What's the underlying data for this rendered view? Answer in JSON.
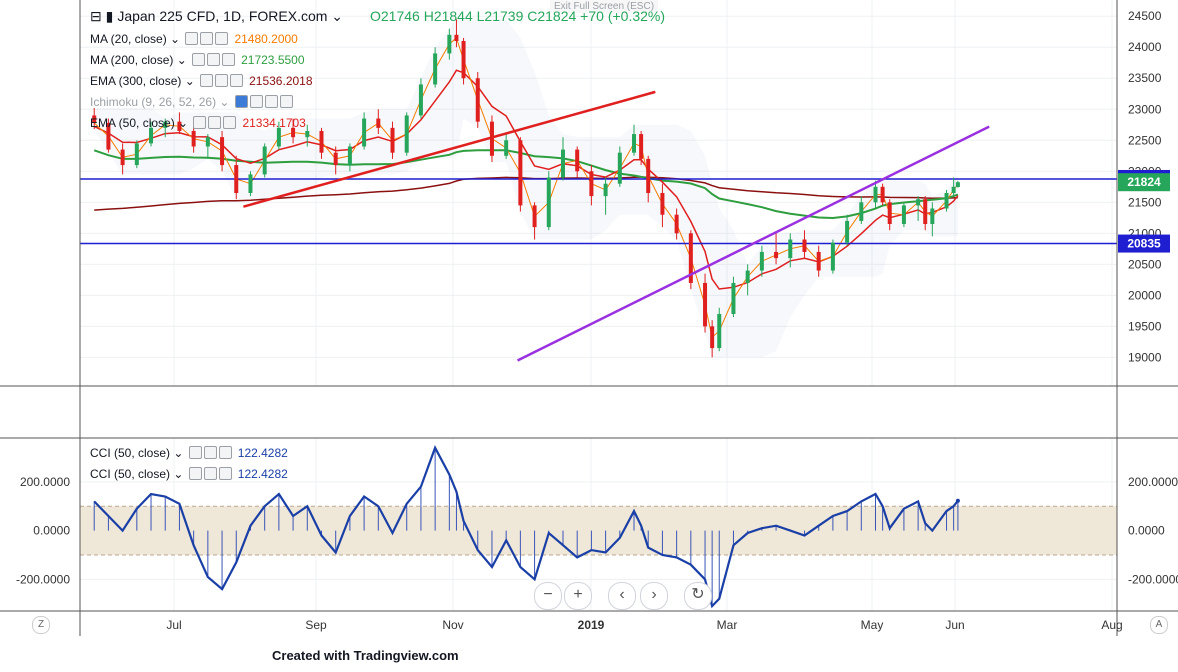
{
  "header": {
    "symbol": "Japan 225 CFD, 1D, FOREX.com",
    "ohlc": "O21746  H21844  L21739  C21824  +70 (+0.32%)",
    "exit_fullscreen": "Exit Full Screen (ESC)"
  },
  "indicators": [
    {
      "label": "MA (20, close)",
      "value": "21480.2000",
      "color": "#f57c00"
    },
    {
      "label": "MA (200, close)",
      "value": "21723.5500",
      "color": "#2e9e3f"
    },
    {
      "label": "EMA (300, close)",
      "value": "21536.2018",
      "color": "#8b1010"
    },
    {
      "label": "Ichimoku (9, 26, 52, 26)",
      "value": "",
      "color": "#9aa0a6"
    },
    {
      "label": "EMA (50, close)",
      "value": "21334.1703",
      "color": "#e01f1f"
    }
  ],
  "cci_indicators": [
    {
      "label": "CCI (50, close)",
      "value": "122.4282",
      "color": "#1a3fa6"
    },
    {
      "label": "CCI (50, close)",
      "value": "122.4282",
      "color": "#1a3fa6"
    }
  ],
  "credit": "Created with Tradingview.com",
  "nav": {
    "zoom_out": "−",
    "zoom_in": "+",
    "prev": "‹",
    "next": "›",
    "reset": "↻"
  },
  "corners": {
    "left": "Z",
    "right": "A"
  },
  "chart_data": [
    {
      "type": "candlestick",
      "title": "Japan 225 CFD, 1D, FOREX.com",
      "x_tick_labels": [
        "Jul",
        "Sep",
        "Nov",
        "2019",
        "Mar",
        "May",
        "Jun",
        "Aug"
      ],
      "y_tick_labels": [
        "19000",
        "19500",
        "20000",
        "20500",
        "21000",
        "21500",
        "22000",
        "22500",
        "23000",
        "23500",
        "24000",
        "24500"
      ],
      "ylim": [
        18700,
        24600
      ],
      "xlim_months": [
        4.9,
        12.2
      ],
      "grid": true,
      "price_labels": [
        {
          "label": "21876",
          "value": 21876,
          "color": "#1f1fd1"
        },
        {
          "label": "21824",
          "value": 21824,
          "color": "#26a65b"
        },
        {
          "label": "20835",
          "value": 20835,
          "color": "#1f1fd1"
        }
      ],
      "horizontal_lines": [
        21876,
        20835
      ],
      "trendlines": [
        {
          "from": [
            6.05,
            21430
          ],
          "to": [
            8.95,
            23280
          ],
          "color": "#e01f1f"
        },
        {
          "from": [
            7.98,
            18950
          ],
          "to": [
            11.3,
            22720
          ],
          "color": "#9b30e0"
        }
      ],
      "ohlc_series": [
        {
          "x": 5.0,
          "o": 22900,
          "h": 23020,
          "l": 22680,
          "c": 22780
        },
        {
          "x": 5.1,
          "o": 22780,
          "h": 22850,
          "l": 22300,
          "c": 22350
        },
        {
          "x": 5.2,
          "o": 22350,
          "h": 22450,
          "l": 21950,
          "c": 22100
        },
        {
          "x": 5.3,
          "o": 22100,
          "h": 22500,
          "l": 22050,
          "c": 22450
        },
        {
          "x": 5.4,
          "o": 22450,
          "h": 22800,
          "l": 22400,
          "c": 22700
        },
        {
          "x": 5.5,
          "o": 22700,
          "h": 22850,
          "l": 22550,
          "c": 22800
        },
        {
          "x": 5.6,
          "o": 22800,
          "h": 22950,
          "l": 22600,
          "c": 22650
        },
        {
          "x": 5.7,
          "o": 22650,
          "h": 22750,
          "l": 22300,
          "c": 22400
        },
        {
          "x": 5.8,
          "o": 22400,
          "h": 22600,
          "l": 22200,
          "c": 22550
        },
        {
          "x": 5.9,
          "o": 22550,
          "h": 22650,
          "l": 22000,
          "c": 22100
        },
        {
          "x": 6.0,
          "o": 22100,
          "h": 22250,
          "l": 21550,
          "c": 21650
        },
        {
          "x": 6.1,
          "o": 21650,
          "h": 22000,
          "l": 21600,
          "c": 21950
        },
        {
          "x": 6.2,
          "o": 21950,
          "h": 22450,
          "l": 21900,
          "c": 22400
        },
        {
          "x": 6.3,
          "o": 22400,
          "h": 22800,
          "l": 22350,
          "c": 22700
        },
        {
          "x": 6.4,
          "o": 22700,
          "h": 22850,
          "l": 22450,
          "c": 22550
        },
        {
          "x": 6.5,
          "o": 22550,
          "h": 22750,
          "l": 22400,
          "c": 22650
        },
        {
          "x": 6.6,
          "o": 22650,
          "h": 22700,
          "l": 22200,
          "c": 22300
        },
        {
          "x": 6.7,
          "o": 22300,
          "h": 22400,
          "l": 21950,
          "c": 22100
        },
        {
          "x": 6.8,
          "o": 22100,
          "h": 22450,
          "l": 22000,
          "c": 22400
        },
        {
          "x": 6.9,
          "o": 22400,
          "h": 22950,
          "l": 22350,
          "c": 22850
        },
        {
          "x": 7.0,
          "o": 22850,
          "h": 23000,
          "l": 22600,
          "c": 22700
        },
        {
          "x": 7.1,
          "o": 22700,
          "h": 22800,
          "l": 22200,
          "c": 22300
        },
        {
          "x": 7.2,
          "o": 22300,
          "h": 22950,
          "l": 22250,
          "c": 22900
        },
        {
          "x": 7.3,
          "o": 22900,
          "h": 23500,
          "l": 22850,
          "c": 23400
        },
        {
          "x": 7.4,
          "o": 23400,
          "h": 24000,
          "l": 23350,
          "c": 23900
        },
        {
          "x": 7.5,
          "o": 23900,
          "h": 24300,
          "l": 23800,
          "c": 24200
        },
        {
          "x": 7.55,
          "o": 24200,
          "h": 24450,
          "l": 24000,
          "c": 24100
        },
        {
          "x": 7.6,
          "o": 24100,
          "h": 24150,
          "l": 23400,
          "c": 23500
        },
        {
          "x": 7.7,
          "o": 23500,
          "h": 23600,
          "l": 22700,
          "c": 22800
        },
        {
          "x": 7.8,
          "o": 22800,
          "h": 22900,
          "l": 22150,
          "c": 22250
        },
        {
          "x": 7.9,
          "o": 22250,
          "h": 22600,
          "l": 22200,
          "c": 22500
        },
        {
          "x": 8.0,
          "o": 22500,
          "h": 22550,
          "l": 21350,
          "c": 21450
        },
        {
          "x": 8.1,
          "o": 21450,
          "h": 21500,
          "l": 20900,
          "c": 21100
        },
        {
          "x": 8.2,
          "o": 21100,
          "h": 22000,
          "l": 21050,
          "c": 21900
        },
        {
          "x": 8.3,
          "o": 21900,
          "h": 22550,
          "l": 21850,
          "c": 22350
        },
        {
          "x": 8.4,
          "o": 22350,
          "h": 22400,
          "l": 21900,
          "c": 22000
        },
        {
          "x": 8.5,
          "o": 22000,
          "h": 22100,
          "l": 21450,
          "c": 21600
        },
        {
          "x": 8.6,
          "o": 21600,
          "h": 21900,
          "l": 21300,
          "c": 21800
        },
        {
          "x": 8.7,
          "o": 21800,
          "h": 22400,
          "l": 21750,
          "c": 22300
        },
        {
          "x": 8.8,
          "o": 22300,
          "h": 22750,
          "l": 22250,
          "c": 22600
        },
        {
          "x": 8.85,
          "o": 22600,
          "h": 22650,
          "l": 22100,
          "c": 22200
        },
        {
          "x": 8.9,
          "o": 22200,
          "h": 22250,
          "l": 21500,
          "c": 21650
        },
        {
          "x": 9.0,
          "o": 21650,
          "h": 21800,
          "l": 21100,
          "c": 21300
        },
        {
          "x": 9.1,
          "o": 21300,
          "h": 21400,
          "l": 20900,
          "c": 21000
        },
        {
          "x": 9.2,
          "o": 21000,
          "h": 21050,
          "l": 20100,
          "c": 20200
        },
        {
          "x": 9.3,
          "o": 20200,
          "h": 20350,
          "l": 19400,
          "c": 19500
        },
        {
          "x": 9.35,
          "o": 19500,
          "h": 19600,
          "l": 19000,
          "c": 19150
        },
        {
          "x": 9.4,
          "o": 19150,
          "h": 19800,
          "l": 19100,
          "c": 19700
        },
        {
          "x": 9.5,
          "o": 19700,
          "h": 20300,
          "l": 19650,
          "c": 20200
        },
        {
          "x": 9.6,
          "o": 20200,
          "h": 20500,
          "l": 20000,
          "c": 20400
        },
        {
          "x": 9.7,
          "o": 20400,
          "h": 20800,
          "l": 20300,
          "c": 20700
        },
        {
          "x": 9.8,
          "o": 20700,
          "h": 21000,
          "l": 20500,
          "c": 20600
        },
        {
          "x": 9.9,
          "o": 20600,
          "h": 21000,
          "l": 20450,
          "c": 20900
        },
        {
          "x": 10.0,
          "o": 20900,
          "h": 21050,
          "l": 20600,
          "c": 20700
        },
        {
          "x": 10.1,
          "o": 20700,
          "h": 20800,
          "l": 20300,
          "c": 20400
        },
        {
          "x": 10.2,
          "o": 20400,
          "h": 20900,
          "l": 20350,
          "c": 20850
        },
        {
          "x": 10.3,
          "o": 20850,
          "h": 21300,
          "l": 20800,
          "c": 21200
        },
        {
          "x": 10.4,
          "o": 21200,
          "h": 21600,
          "l": 21150,
          "c": 21500
        },
        {
          "x": 10.5,
          "o": 21500,
          "h": 21850,
          "l": 21400,
          "c": 21750
        },
        {
          "x": 10.55,
          "o": 21750,
          "h": 21800,
          "l": 21450,
          "c": 21500
        },
        {
          "x": 10.6,
          "o": 21500,
          "h": 21550,
          "l": 21050,
          "c": 21150
        },
        {
          "x": 10.7,
          "o": 21150,
          "h": 21500,
          "l": 21100,
          "c": 21450
        },
        {
          "x": 10.8,
          "o": 21450,
          "h": 21600,
          "l": 21200,
          "c": 21550
        },
        {
          "x": 10.85,
          "o": 21550,
          "h": 21600,
          "l": 21050,
          "c": 21150
        },
        {
          "x": 10.9,
          "o": 21150,
          "h": 21500,
          "l": 20950,
          "c": 21400
        },
        {
          "x": 11.0,
          "o": 21400,
          "h": 21700,
          "l": 21350,
          "c": 21650
        },
        {
          "x": 11.05,
          "o": 21650,
          "h": 21900,
          "l": 21600,
          "c": 21750
        },
        {
          "x": 11.08,
          "o": 21746,
          "h": 21844,
          "l": 21739,
          "c": 21824
        }
      ]
    },
    {
      "type": "line",
      "title": "CCI (50, close)",
      "y_tick_labels": [
        "200.0000",
        "0.0000",
        "-200.0000"
      ],
      "ylim": [
        -330,
        380
      ],
      "band": [
        -100,
        100
      ],
      "last_value": 122.4282,
      "series": [
        {
          "x": [
            5.0,
            5.1,
            5.2,
            5.3,
            5.4,
            5.5,
            5.6,
            5.7,
            5.8,
            5.9,
            6.0,
            6.1,
            6.2,
            6.3,
            6.4,
            6.5,
            6.6,
            6.7,
            6.8,
            6.9,
            7.0,
            7.1,
            7.2,
            7.3,
            7.4,
            7.5,
            7.55,
            7.6,
            7.7,
            7.8,
            7.9,
            8.0,
            8.1,
            8.2,
            8.3,
            8.4,
            8.5,
            8.6,
            8.7,
            8.8,
            8.85,
            8.9,
            9.0,
            9.1,
            9.2,
            9.3,
            9.35,
            9.4,
            9.5,
            9.6,
            9.7,
            9.8,
            9.9,
            10.0,
            10.1,
            10.2,
            10.3,
            10.4,
            10.5,
            10.55,
            10.6,
            10.7,
            10.8,
            10.85,
            10.9,
            11.0,
            11.05,
            11.08
          ],
          "values": [
            120,
            60,
            0,
            90,
            150,
            140,
            110,
            -60,
            -190,
            -240,
            -130,
            20,
            100,
            150,
            60,
            100,
            -20,
            -90,
            60,
            140,
            100,
            -10,
            110,
            180,
            340,
            230,
            160,
            40,
            -80,
            -150,
            -40,
            -150,
            -200,
            -10,
            -60,
            -110,
            -80,
            -90,
            -30,
            80,
            20,
            -70,
            -100,
            -110,
            -140,
            -200,
            -310,
            -280,
            -60,
            -10,
            10,
            20,
            0,
            -20,
            20,
            60,
            80,
            120,
            150,
            100,
            10,
            90,
            120,
            30,
            0,
            80,
            100,
            122.4282
          ]
        }
      ]
    }
  ]
}
